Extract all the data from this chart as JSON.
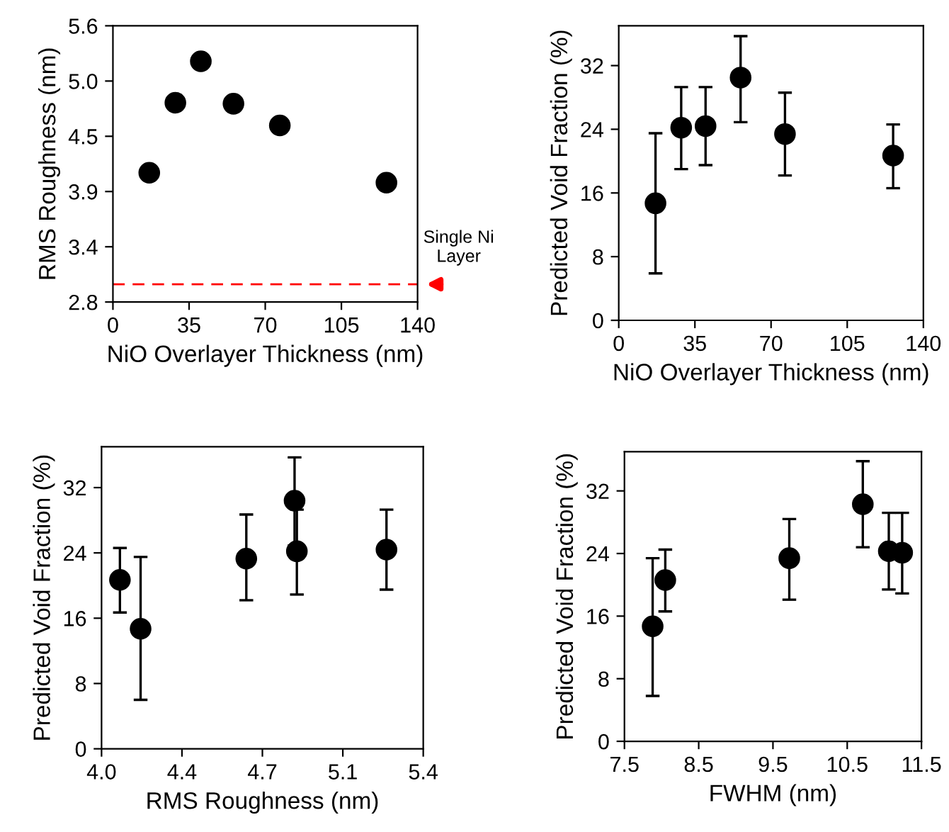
{
  "chart_data": [
    {
      "type": "scatter",
      "xlabel": "NiO Overlayer Thickness (nm)",
      "ylabel": "RMS Roughness (nm)",
      "marker": "circle",
      "grid": false,
      "series": [
        {
          "color": "#000000",
          "x": [
            16.7,
            28.7,
            40.4,
            55.4,
            76.7,
            125.7
          ],
          "values": [
            4.11,
            4.82,
            5.24,
            4.81,
            4.59,
            4.01
          ]
        }
      ],
      "xlim": [
        0,
        140
      ],
      "xticks": [
        0,
        35,
        70,
        105,
        140
      ],
      "ylim": [
        2.8,
        5.6
      ],
      "yticks": [
        {
          "value": 2.8,
          "label": "2.8"
        },
        {
          "value": 3.36,
          "label": "3.4"
        },
        {
          "value": 3.92,
          "label": "3.9"
        },
        {
          "value": 4.48,
          "label": "4.5"
        },
        {
          "value": 5.04,
          "label": "5.0"
        },
        {
          "value": 5.6,
          "label": "5.6"
        }
      ],
      "ref_lines": [
        {
          "axis": "y",
          "value": 2.98,
          "label": "Single Ni\nLayer",
          "color": "#ff0000",
          "line_style": "dashed"
        }
      ]
    },
    {
      "type": "scatter",
      "xlabel": "NiO Overlayer Thickness (nm)",
      "ylabel": "Predicted Void Fraction (%)",
      "marker": "circle",
      "grid": false,
      "series": [
        {
          "color": "#000000",
          "x": [
            16.9,
            28.7,
            39.9,
            56.0,
            76.4,
            126.1
          ],
          "values": [
            14.7,
            24.2,
            24.4,
            30.5,
            23.4,
            20.7
          ],
          "errors": [
            [
              5.9,
              23.5
            ],
            [
              19.0,
              29.3
            ],
            [
              19.5,
              29.3
            ],
            [
              24.9,
              35.7
            ],
            [
              18.2,
              28.6
            ],
            [
              16.6,
              24.6
            ]
          ]
        }
      ],
      "xlim": [
        0,
        140
      ],
      "xticks": [
        0,
        35,
        70,
        105,
        140
      ],
      "ylim": [
        0,
        37
      ],
      "yticks": [
        0,
        8,
        16,
        24,
        32
      ]
    },
    {
      "type": "scatter",
      "xlabel": "RMS Roughness (nm)",
      "ylabel": "Predicted Void Fraction (%)",
      "marker": "circle",
      "grid": false,
      "series": [
        {
          "color": "#000000",
          "x": [
            4.08,
            4.17,
            4.63,
            4.84,
            4.85,
            5.24
          ],
          "values": [
            20.7,
            14.7,
            23.3,
            30.4,
            24.2,
            24.4
          ],
          "errors": [
            [
              16.7,
              24.6
            ],
            [
              6.0,
              23.5
            ],
            [
              18.2,
              28.7
            ],
            [
              24.9,
              35.7
            ],
            [
              18.9,
              29.3
            ],
            [
              19.5,
              29.3
            ]
          ]
        }
      ],
      "xlim": [
        4.0,
        5.4
      ],
      "xticks": [
        {
          "value": 4.0,
          "label": "4.0"
        },
        {
          "value": 4.35,
          "label": "4.4"
        },
        {
          "value": 4.7,
          "label": "4.7"
        },
        {
          "value": 5.05,
          "label": "5.1"
        },
        {
          "value": 5.4,
          "label": "5.4"
        }
      ],
      "ylim": [
        0,
        37
      ],
      "yticks": [
        0,
        8,
        16,
        24,
        32
      ]
    },
    {
      "type": "scatter",
      "xlabel": "FWHM (nm)",
      "ylabel": "Predicted Void Fraction (%)",
      "marker": "circle",
      "grid": false,
      "series": [
        {
          "color": "#000000",
          "x": [
            7.88,
            8.05,
            9.72,
            10.71,
            11.06,
            11.24
          ],
          "values": [
            14.7,
            20.6,
            23.4,
            30.3,
            24.3,
            24.1
          ],
          "errors": [
            [
              5.8,
              23.4
            ],
            [
              16.6,
              24.5
            ],
            [
              18.1,
              28.4
            ],
            [
              24.8,
              35.8
            ],
            [
              19.4,
              29.2
            ],
            [
              18.9,
              29.2
            ]
          ]
        }
      ],
      "xlim": [
        7.5,
        11.5
      ],
      "xticks": [
        7.5,
        8.5,
        9.5,
        10.5,
        11.5
      ],
      "ylim": [
        0,
        37
      ],
      "yticks": [
        0,
        8,
        16,
        24,
        32
      ]
    }
  ]
}
